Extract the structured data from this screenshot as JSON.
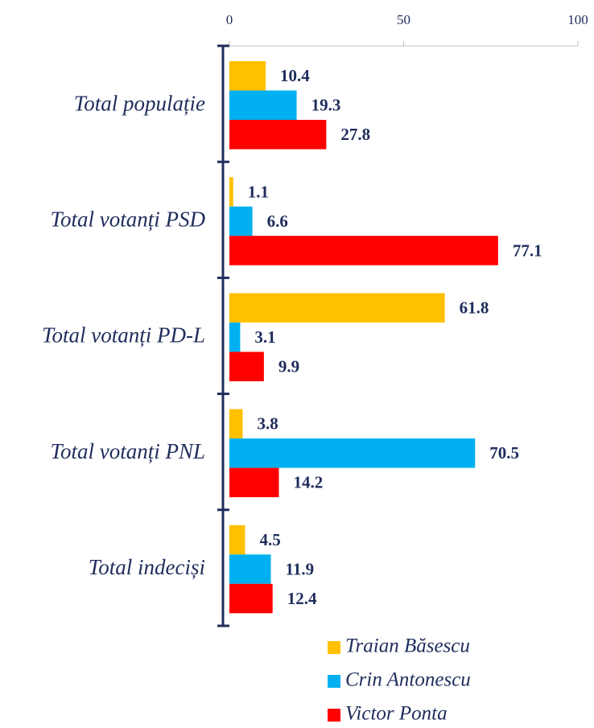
{
  "chart_data": {
    "type": "bar",
    "orientation": "horizontal",
    "categories": [
      "Total populație",
      "Total votanți PSD",
      "Total votanți PD-L",
      "Total votanți PNL",
      "Total indeciși"
    ],
    "series": [
      {
        "name": "Traian Băsescu",
        "color": "#FFC000",
        "values": [
          10.4,
          1.1,
          61.8,
          3.8,
          4.5
        ]
      },
      {
        "name": "Crin Antonescu",
        "color": "#00B0F0",
        "values": [
          19.3,
          6.6,
          3.1,
          70.5,
          11.9
        ]
      },
      {
        "name": "Victor Ponta",
        "color": "#FF0000",
        "values": [
          27.8,
          77.1,
          9.9,
          14.2,
          12.4
        ]
      }
    ],
    "xlim": [
      0,
      100
    ],
    "xticks": [
      0,
      50,
      100
    ],
    "legend": "bottom"
  }
}
